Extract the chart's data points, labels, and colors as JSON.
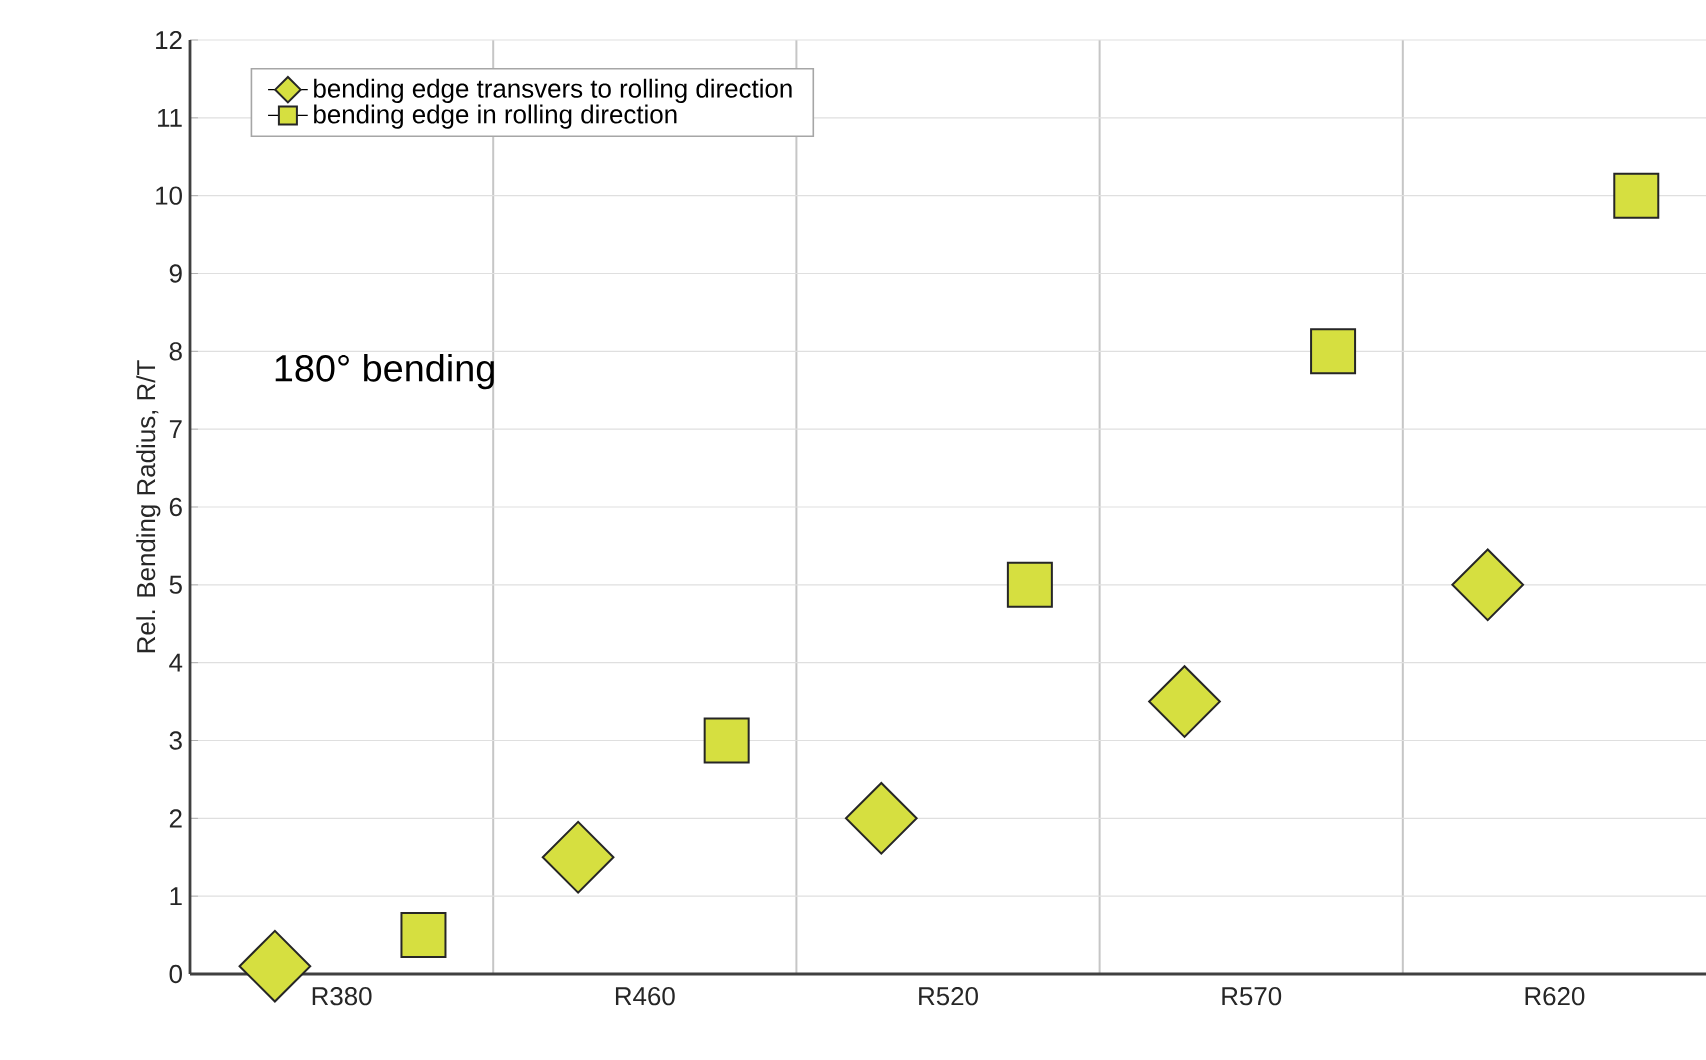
{
  "chart_data": {
    "type": "scatter",
    "ylabel": "Rel. Bending Radius, R/T",
    "categories": [
      "R380",
      "R460",
      "R520",
      "R570",
      "R620"
    ],
    "series": [
      {
        "name": "bending edge transvers to rolling direction",
        "color": "#d6df40",
        "marker": "diamond",
        "values": [
          0.1,
          1.5,
          2,
          3.5,
          5
        ]
      },
      {
        "name": "bending edge in rolling direction",
        "color": "#d6df40",
        "marker": "square",
        "values": [
          0.5,
          3,
          5,
          8,
          10
        ]
      }
    ],
    "ylim": [
      0,
      12
    ],
    "yticks": [
      0,
      1,
      2,
      3,
      4,
      5,
      6,
      7,
      8,
      9,
      10,
      11,
      12
    ],
    "grid": true,
    "legend": "top left",
    "annotations": [
      "180° bending"
    ]
  }
}
